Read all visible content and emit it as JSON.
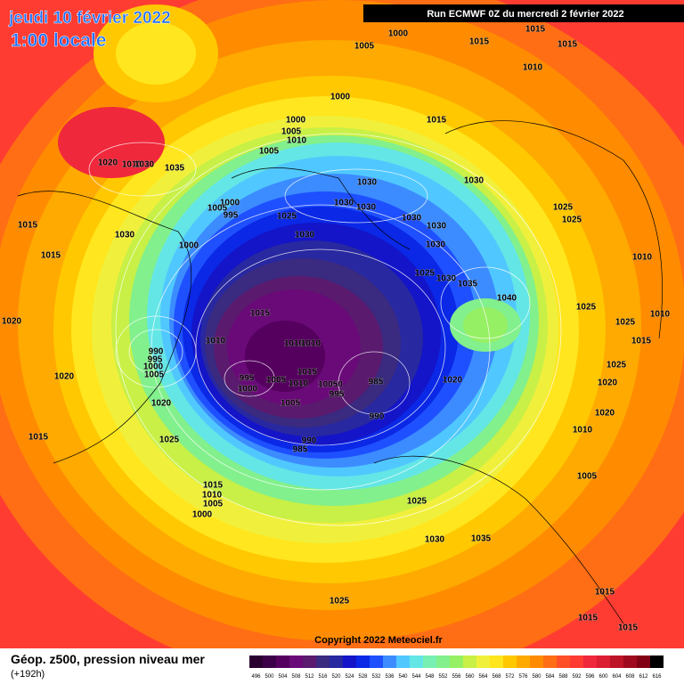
{
  "header": {
    "date": "jeudi 10 février 2022",
    "time": "1:00 locale",
    "run": "Run ECMWF 0Z du mercredi 2 février 2022"
  },
  "copyright": "Copyright 2022 Meteociel.fr",
  "footer": {
    "title": "Géop. z500, pression niveau mer",
    "lead": "(+192h)"
  },
  "colorbar": {
    "values": [
      496,
      500,
      504,
      508,
      512,
      516,
      520,
      524,
      528,
      532,
      536,
      540,
      544,
      548,
      552,
      556,
      560,
      564,
      568,
      572,
      576,
      580,
      584,
      588,
      592,
      596,
      600,
      604,
      608,
      612,
      616
    ],
    "colors": [
      "#2a0030",
      "#3d0048",
      "#55005f",
      "#6a0a78",
      "#5a1a6e",
      "#3a2a80",
      "#2828a0",
      "#1414c8",
      "#0a28e6",
      "#1e50ff",
      "#3c8cff",
      "#50c8ff",
      "#64e6e6",
      "#78f0b4",
      "#82f08c",
      "#96f064",
      "#c8f046",
      "#f0f03c",
      "#ffe61e",
      "#ffc800",
      "#ffaa00",
      "#ff8c00",
      "#ff6e14",
      "#ff5028",
      "#ff3c32",
      "#f0283c",
      "#dc1e32",
      "#be1428",
      "#a00a1e",
      "#820014",
      "#000000"
    ]
  },
  "isobar_labels": [
    "1000",
    "1005",
    "1015",
    "1015",
    "1015",
    "1010",
    "1000",
    "1015",
    "1000",
    "1005",
    "1010",
    "1005",
    "1020",
    "1010",
    "1030",
    "1035",
    "1030",
    "1030",
    "1000",
    "1005",
    "995",
    "1025",
    "1030",
    "1030",
    "1030",
    "1030",
    "1025",
    "1025",
    "1015",
    "1030",
    "1030",
    "1030",
    "1000",
    "1015",
    "1010",
    "1025",
    "1030",
    "1035",
    "1040",
    "1025",
    "1010",
    "1015",
    "1020",
    "1025",
    "1010",
    "1015",
    "990",
    "1010",
    "1010",
    "995",
    "1000",
    "1005",
    "1015",
    "1020",
    "995",
    "1005",
    "1010",
    "10050",
    "985",
    "1020",
    "1000",
    "995",
    "1025",
    "1020",
    "1005",
    "1020",
    "990",
    "1020",
    "1010",
    "1015",
    "1025",
    "990",
    "985",
    "1005",
    "1015",
    "1010",
    "1005",
    "1000",
    "1025",
    "1030",
    "1035",
    "1025",
    "1015",
    "1015",
    "1015"
  ]
}
